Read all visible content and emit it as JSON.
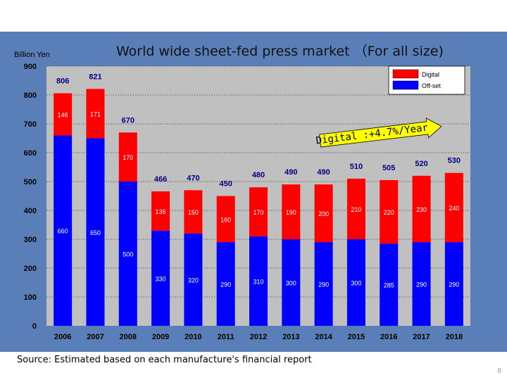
{
  "slide": {
    "source_note": "Source:  Estimated based on each manufacture's financial report",
    "page_number": "8"
  },
  "chart_data": {
    "type": "bar",
    "stacked": true,
    "title": "World wide sheet-fed press market （For all size)",
    "ylabel": "Billion Yen",
    "xlabel": "",
    "ylim": [
      0,
      900
    ],
    "yticks": [
      0,
      100,
      200,
      300,
      400,
      500,
      600,
      700,
      800,
      900
    ],
    "grid": true,
    "legend_position": "top-right",
    "categories": [
      "2006",
      "2007",
      "2008",
      "2009",
      "2010",
      "2011",
      "2012",
      "2013",
      "2014",
      "2015",
      "2016",
      "2017",
      "2018"
    ],
    "series": [
      {
        "name": "Off-set",
        "color": "#0000ff",
        "label_color": "#ffffff",
        "values": [
          660,
          650,
          500,
          330,
          320,
          290,
          310,
          300,
          290,
          300,
          285,
          290,
          290
        ]
      },
      {
        "name": "Digital",
        "color": "#ff0000",
        "label_color": "#ffffff",
        "values": [
          146,
          171,
          170,
          136,
          150,
          160,
          170,
          190,
          200,
          210,
          220,
          230,
          240
        ]
      }
    ],
    "totals": [
      806,
      821,
      670,
      466,
      470,
      450,
      480,
      490,
      490,
      510,
      505,
      520,
      530
    ],
    "annotation": {
      "text": "Digital :+4.7%/Year",
      "from_category": "2014",
      "to_category": "2018"
    },
    "colors": {
      "background": "#5a7fb8",
      "plot_area": "#c0c0c0",
      "axis_text": "#000000",
      "title": "#111111"
    }
  }
}
